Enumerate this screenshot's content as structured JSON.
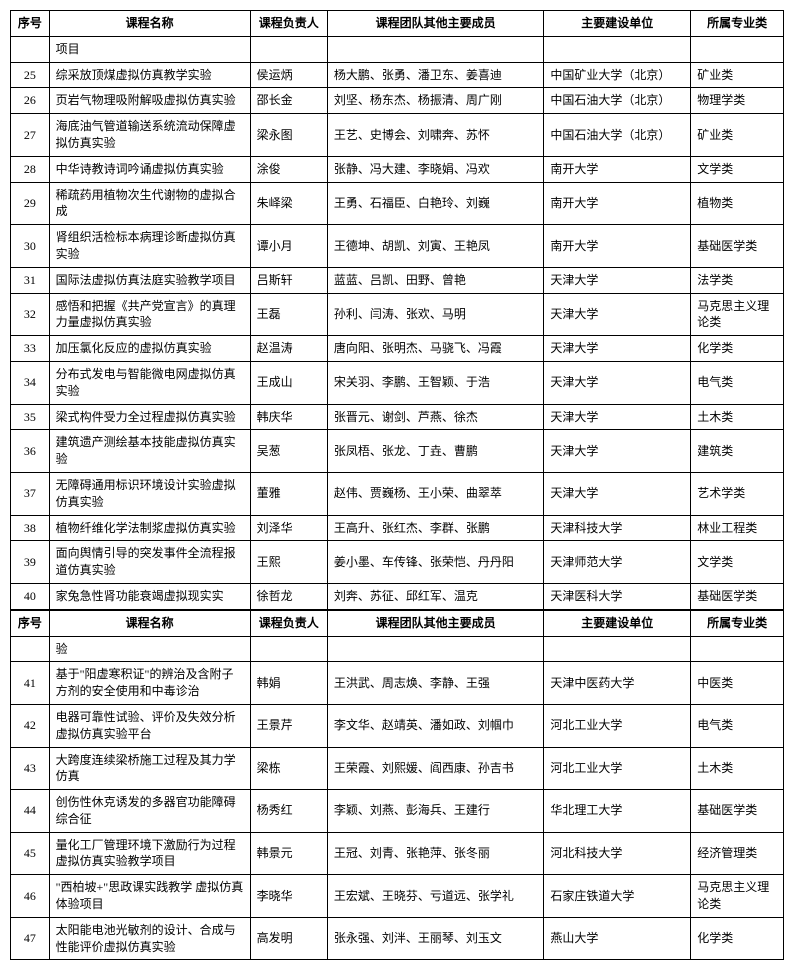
{
  "headers": {
    "col1": "序号",
    "col2": "课程名称",
    "col3": "课程负责人",
    "col4": "课程团队其他主要成员",
    "col5": "主要建设单位",
    "col6": "所属专业类"
  },
  "topFragment": "项目",
  "rows1": [
    {
      "num": "25",
      "name": "综采放顶煤虚拟仿真教学实验",
      "leader": "侯运炳",
      "members": "杨大鹏、张勇、潘卫东、姜喜迪",
      "unit": "中国矿业大学（北京）",
      "major": "矿业类"
    },
    {
      "num": "26",
      "name": "页岩气物理吸附解吸虚拟仿真实验",
      "leader": "邵长金",
      "members": "刘坚、杨东杰、杨振清、周广刚",
      "unit": "中国石油大学（北京）",
      "major": "物理学类"
    },
    {
      "num": "27",
      "name": "海底油气管道输送系统流动保障虚拟仿真实验",
      "leader": "梁永图",
      "members": "王艺、史博会、刘啸奔、苏怀",
      "unit": "中国石油大学（北京）",
      "major": "矿业类"
    },
    {
      "num": "28",
      "name": "中华诗教诗词吟诵虚拟仿真实验",
      "leader": "涂俊",
      "members": "张静、冯大建、李晓娟、冯欢",
      "unit": "南开大学",
      "major": "文学类"
    },
    {
      "num": "29",
      "name": "稀疏药用植物次生代谢物的虚拟合成",
      "leader": "朱峄梁",
      "members": "王勇、石福臣、白艳玲、刘巍",
      "unit": "南开大学",
      "major": "植物类"
    },
    {
      "num": "30",
      "name": "肾组织活检标本病理诊断虚拟仿真实验",
      "leader": "谭小月",
      "members": "王德坤、胡凯、刘寅、王艳凤",
      "unit": "南开大学",
      "major": "基础医学类"
    },
    {
      "num": "31",
      "name": "国际法虚拟仿真法庭实验教学项目",
      "leader": "吕斯轩",
      "members": "蓝蓝、吕凯、田野、曾艳",
      "unit": "天津大学",
      "major": "法学类"
    },
    {
      "num": "32",
      "name": "感悟和把握《共产党宣言》的真理力量虚拟仿真实验",
      "leader": "王磊",
      "members": "孙利、闫涛、张欢、马明",
      "unit": "天津大学",
      "major": "马克思主义理论类"
    },
    {
      "num": "33",
      "name": "加压氯化反应的虚拟仿真实验",
      "leader": "赵温涛",
      "members": "唐向阳、张明杰、马骁飞、冯霞",
      "unit": "天津大学",
      "major": "化学类"
    },
    {
      "num": "34",
      "name": "分布式发电与智能微电网虚拟仿真实验",
      "leader": "王成山",
      "members": "宋关羽、李鹏、王智颖、于浩",
      "unit": "天津大学",
      "major": "电气类"
    },
    {
      "num": "35",
      "name": "梁式构件受力全过程虚拟仿真实验",
      "leader": "韩庆华",
      "members": "张晋元、谢剑、芦燕、徐杰",
      "unit": "天津大学",
      "major": "土木类"
    },
    {
      "num": "36",
      "name": "建筑遗产测绘基本技能虚拟仿真实验",
      "leader": "吴葱",
      "members": "张凤梧、张龙、丁垚、曹鹏",
      "unit": "天津大学",
      "major": "建筑类"
    },
    {
      "num": "37",
      "name": "无障碍通用标识环境设计实验虚拟仿真实验",
      "leader": "董雅",
      "members": "赵伟、贾巍杨、王小荣、曲翠萃",
      "unit": "天津大学",
      "major": "艺术学类"
    },
    {
      "num": "38",
      "name": "植物纤维化学法制浆虚拟仿真实验",
      "leader": "刘泽华",
      "members": "王高升、张红杰、李群、张鹏",
      "unit": "天津科技大学",
      "major": "林业工程类"
    },
    {
      "num": "39",
      "name": "面向舆情引导的突发事件全流程报道仿真实验",
      "leader": "王熙",
      "members": "姜小墨、车传锋、张荣恺、丹丹阳",
      "unit": "天津师范大学",
      "major": "文学类"
    },
    {
      "num": "40",
      "name": "家兔急性肾功能衰竭虚拟现实实",
      "leader": "徐哲龙",
      "members": "刘奔、苏征、邱红军、温克",
      "unit": "天津医科大学",
      "major": "基础医学类"
    }
  ],
  "bottomFragment": "验",
  "rows2": [
    {
      "num": "41",
      "name": "基于\"阳虚寒积证\"的辨治及含附子方剂的安全使用和中毒诊治",
      "leader": "韩娟",
      "members": "王洪武、周志焕、李静、王强",
      "unit": "天津中医药大学",
      "major": "中医类"
    },
    {
      "num": "42",
      "name": "电器可靠性试验、评价及失效分析虚拟仿真实验平台",
      "leader": "王景芹",
      "members": "李文华、赵靖英、潘如政、刘帼巾",
      "unit": "河北工业大学",
      "major": "电气类"
    },
    {
      "num": "43",
      "name": "大跨度连续梁桥施工过程及其力学仿真",
      "leader": "梁栋",
      "members": "王荣霞、刘熙媛、阎西康、孙吉书",
      "unit": "河北工业大学",
      "major": "土木类"
    },
    {
      "num": "44",
      "name": "创伤性休克诱发的多器官功能障碍综合征",
      "leader": "杨秀红",
      "members": "李颖、刘燕、彭海兵、王建行",
      "unit": "华北理工大学",
      "major": "基础医学类"
    },
    {
      "num": "45",
      "name": "量化工厂管理环境下激励行为过程虚拟仿真实验教学项目",
      "leader": "韩景元",
      "members": "王冠、刘青、张艳萍、张冬丽",
      "unit": "河北科技大学",
      "major": "经济管理类"
    },
    {
      "num": "46",
      "name": "\"西柏坡+\"思政课实践教学 虚拟仿真体验项目",
      "leader": "李晓华",
      "members": "王宏斌、王晓芬、亏道远、张学礼",
      "unit": "石家庄铁道大学",
      "major": "马克思主义理论类"
    },
    {
      "num": "47",
      "name": "太阳能电池光敏剂的设计、合成与性能评价虚拟仿真实验",
      "leader": "高发明",
      "members": "张永强、刘泮、王丽琴、刘玉文",
      "unit": "燕山大学",
      "major": "化学类"
    }
  ],
  "style": {
    "background_color": "#ffffff",
    "text_color": "#000000",
    "border_color": "#000000",
    "font_family": "SimSun",
    "font_size_pt": 9,
    "header_font_weight": "bold"
  }
}
